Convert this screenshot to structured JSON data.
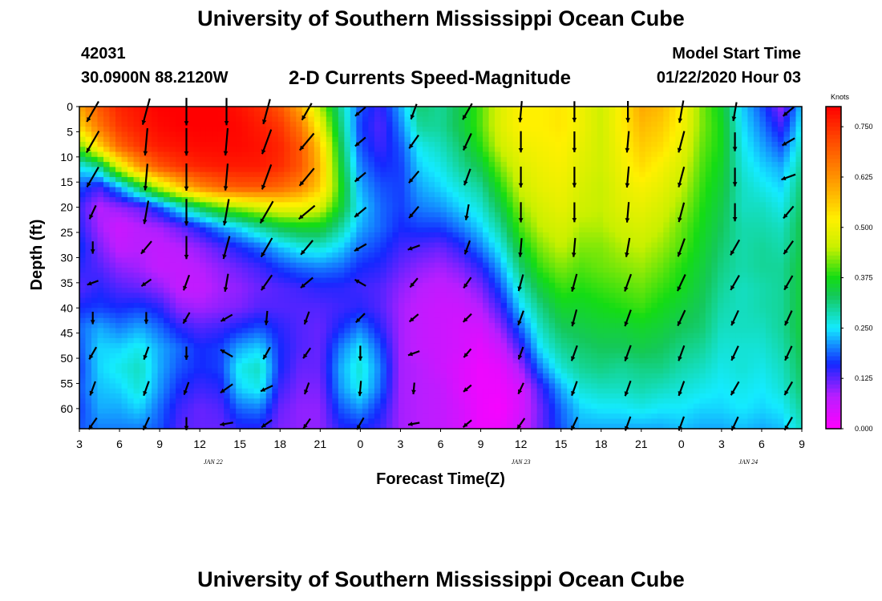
{
  "header": {
    "title": "University of Southern Mississippi Ocean Cube",
    "station_id": "42031",
    "station_coords": "30.0900N 88.2120W",
    "plot_title": "2-D Currents Speed-Magnitude",
    "model_label": "Model Start Time",
    "model_time": "01/22/2020 Hour 03"
  },
  "footer": {
    "title": "University of Southern Mississippi Ocean Cube"
  },
  "chart_data": {
    "type": "heatmap",
    "xlabel": "Forecast Time(Z)",
    "ylabel": "Depth (ft)",
    "x_hours_range": [
      3,
      57
    ],
    "ylim": [
      0,
      64
    ],
    "y_ticks": [
      0,
      5,
      10,
      15,
      20,
      25,
      30,
      35,
      40,
      45,
      50,
      55,
      60
    ],
    "x_tick_labels": [
      "3",
      "6",
      "9",
      "12",
      "15",
      "18",
      "21",
      "0",
      "3",
      "6",
      "9",
      "12",
      "15",
      "18",
      "21",
      "0",
      "3",
      "6",
      "9"
    ],
    "date_labels": [
      {
        "text": "JAN  22",
        "hour": 13
      },
      {
        "text": "JAN  23",
        "hour": 36
      },
      {
        "text": "JAN  24",
        "hour": 53
      }
    ],
    "colorbar": {
      "unit": "Knots",
      "min": 0.0,
      "max": 0.8,
      "ticks": [
        "0.000",
        "0.125",
        "0.250",
        "0.375",
        "0.500",
        "0.625",
        "0.750"
      ]
    },
    "speed_columns": {
      "hours": [
        3,
        4.5,
        6,
        7.5,
        9,
        10.5,
        12,
        13.5,
        15,
        16.5,
        18,
        19.5,
        21,
        22.5,
        24,
        25.5,
        27,
        28.5,
        30,
        31.5,
        33,
        34.5,
        36,
        37.5,
        39,
        40.5,
        42,
        43.5,
        45,
        46.5,
        48,
        49.5,
        51,
        52.5,
        54,
        55.5,
        57
      ],
      "depths": [
        0,
        4,
        8,
        12,
        16,
        20,
        24,
        28,
        32,
        36,
        40,
        44,
        48,
        52,
        56,
        60,
        64
      ],
      "values": [
        [
          0.6,
          0.55,
          0.4,
          0.25,
          0.18,
          0.14,
          0.15,
          0.17,
          0.15,
          0.13,
          0.16,
          0.19,
          0.18,
          0.17,
          0.18,
          0.17,
          0.18
        ],
        [
          0.7,
          0.66,
          0.55,
          0.3,
          0.14,
          0.08,
          0.09,
          0.11,
          0.13,
          0.15,
          0.17,
          0.22,
          0.24,
          0.24,
          0.23,
          0.22,
          0.2
        ],
        [
          0.76,
          0.74,
          0.68,
          0.48,
          0.22,
          0.1,
          0.06,
          0.07,
          0.1,
          0.13,
          0.16,
          0.2,
          0.24,
          0.26,
          0.24,
          0.22,
          0.2
        ],
        [
          0.78,
          0.77,
          0.74,
          0.62,
          0.34,
          0.12,
          0.08,
          0.08,
          0.09,
          0.12,
          0.17,
          0.22,
          0.26,
          0.28,
          0.27,
          0.24,
          0.2
        ],
        [
          0.8,
          0.79,
          0.77,
          0.7,
          0.46,
          0.18,
          0.09,
          0.07,
          0.07,
          0.1,
          0.15,
          0.19,
          0.22,
          0.22,
          0.21,
          0.19,
          0.18
        ],
        [
          0.8,
          0.8,
          0.78,
          0.74,
          0.56,
          0.26,
          0.12,
          0.08,
          0.07,
          0.07,
          0.1,
          0.15,
          0.19,
          0.18,
          0.16,
          0.14,
          0.13
        ],
        [
          0.8,
          0.8,
          0.79,
          0.76,
          0.64,
          0.34,
          0.16,
          0.1,
          0.08,
          0.07,
          0.09,
          0.13,
          0.16,
          0.16,
          0.14,
          0.12,
          0.12
        ],
        [
          0.8,
          0.8,
          0.79,
          0.77,
          0.68,
          0.4,
          0.21,
          0.13,
          0.1,
          0.09,
          0.1,
          0.14,
          0.17,
          0.17,
          0.15,
          0.13,
          0.12
        ],
        [
          0.78,
          0.79,
          0.79,
          0.77,
          0.7,
          0.44,
          0.25,
          0.16,
          0.12,
          0.1,
          0.11,
          0.16,
          0.22,
          0.26,
          0.24,
          0.19,
          0.15
        ],
        [
          0.75,
          0.77,
          0.78,
          0.77,
          0.7,
          0.47,
          0.3,
          0.19,
          0.14,
          0.12,
          0.13,
          0.18,
          0.24,
          0.28,
          0.26,
          0.2,
          0.15
        ],
        [
          0.7,
          0.74,
          0.76,
          0.75,
          0.68,
          0.5,
          0.34,
          0.23,
          0.17,
          0.13,
          0.13,
          0.15,
          0.16,
          0.16,
          0.14,
          0.12,
          0.11
        ],
        [
          0.6,
          0.66,
          0.7,
          0.7,
          0.64,
          0.5,
          0.36,
          0.26,
          0.19,
          0.14,
          0.13,
          0.13,
          0.13,
          0.12,
          0.11,
          0.1,
          0.1
        ],
        [
          0.44,
          0.5,
          0.56,
          0.58,
          0.56,
          0.47,
          0.36,
          0.27,
          0.2,
          0.15,
          0.13,
          0.12,
          0.12,
          0.12,
          0.11,
          0.1,
          0.1
        ],
        [
          0.3,
          0.32,
          0.34,
          0.36,
          0.38,
          0.36,
          0.3,
          0.24,
          0.19,
          0.15,
          0.14,
          0.16,
          0.2,
          0.22,
          0.21,
          0.18,
          0.15
        ],
        [
          0.18,
          0.17,
          0.18,
          0.2,
          0.22,
          0.24,
          0.22,
          0.19,
          0.16,
          0.14,
          0.15,
          0.2,
          0.25,
          0.27,
          0.26,
          0.21,
          0.16
        ],
        [
          0.14,
          0.13,
          0.14,
          0.16,
          0.18,
          0.19,
          0.19,
          0.17,
          0.15,
          0.13,
          0.13,
          0.15,
          0.18,
          0.2,
          0.19,
          0.16,
          0.14
        ],
        [
          0.22,
          0.2,
          0.18,
          0.17,
          0.17,
          0.17,
          0.16,
          0.14,
          0.12,
          0.1,
          0.09,
          0.09,
          0.09,
          0.09,
          0.09,
          0.09,
          0.09
        ],
        [
          0.32,
          0.3,
          0.26,
          0.24,
          0.22,
          0.2,
          0.17,
          0.13,
          0.1,
          0.08,
          0.07,
          0.07,
          0.07,
          0.08,
          0.08,
          0.08,
          0.08
        ],
        [
          0.3,
          0.3,
          0.28,
          0.26,
          0.24,
          0.21,
          0.17,
          0.12,
          0.09,
          0.07,
          0.06,
          0.06,
          0.06,
          0.06,
          0.07,
          0.07,
          0.07
        ],
        [
          0.34,
          0.34,
          0.32,
          0.3,
          0.27,
          0.24,
          0.2,
          0.15,
          0.11,
          0.08,
          0.06,
          0.05,
          0.05,
          0.04,
          0.04,
          0.05,
          0.05
        ],
        [
          0.4,
          0.4,
          0.38,
          0.34,
          0.3,
          0.27,
          0.24,
          0.2,
          0.15,
          0.11,
          0.08,
          0.05,
          0.03,
          0.02,
          0.02,
          0.02,
          0.02
        ],
        [
          0.48,
          0.48,
          0.46,
          0.42,
          0.38,
          0.34,
          0.3,
          0.26,
          0.22,
          0.18,
          0.14,
          0.1,
          0.06,
          0.03,
          0.02,
          0.01,
          0.02
        ],
        [
          0.52,
          0.52,
          0.5,
          0.48,
          0.46,
          0.43,
          0.4,
          0.36,
          0.32,
          0.28,
          0.24,
          0.19,
          0.14,
          0.09,
          0.05,
          0.05,
          0.06
        ],
        [
          0.52,
          0.52,
          0.51,
          0.5,
          0.49,
          0.47,
          0.45,
          0.42,
          0.39,
          0.35,
          0.31,
          0.28,
          0.25,
          0.2,
          0.14,
          0.12,
          0.12
        ],
        [
          0.53,
          0.53,
          0.52,
          0.51,
          0.5,
          0.49,
          0.47,
          0.45,
          0.42,
          0.39,
          0.36,
          0.33,
          0.3,
          0.27,
          0.22,
          0.19,
          0.18
        ],
        [
          0.5,
          0.5,
          0.49,
          0.48,
          0.47,
          0.46,
          0.44,
          0.42,
          0.4,
          0.38,
          0.36,
          0.34,
          0.32,
          0.3,
          0.27,
          0.24,
          0.22
        ],
        [
          0.46,
          0.46,
          0.46,
          0.46,
          0.45,
          0.45,
          0.44,
          0.42,
          0.41,
          0.39,
          0.37,
          0.35,
          0.33,
          0.31,
          0.28,
          0.25,
          0.22
        ],
        [
          0.52,
          0.52,
          0.51,
          0.5,
          0.49,
          0.48,
          0.46,
          0.44,
          0.42,
          0.4,
          0.38,
          0.35,
          0.33,
          0.3,
          0.28,
          0.25,
          0.22
        ],
        [
          0.6,
          0.58,
          0.56,
          0.54,
          0.51,
          0.49,
          0.47,
          0.45,
          0.43,
          0.41,
          0.39,
          0.36,
          0.34,
          0.31,
          0.29,
          0.26,
          0.22
        ],
        [
          0.58,
          0.56,
          0.54,
          0.51,
          0.49,
          0.47,
          0.45,
          0.43,
          0.41,
          0.39,
          0.37,
          0.35,
          0.33,
          0.31,
          0.28,
          0.25,
          0.22
        ],
        [
          0.52,
          0.51,
          0.49,
          0.47,
          0.45,
          0.43,
          0.41,
          0.4,
          0.38,
          0.37,
          0.35,
          0.33,
          0.31,
          0.29,
          0.27,
          0.25,
          0.23
        ],
        [
          0.42,
          0.42,
          0.41,
          0.4,
          0.39,
          0.38,
          0.37,
          0.36,
          0.35,
          0.34,
          0.33,
          0.32,
          0.3,
          0.28,
          0.26,
          0.24,
          0.22
        ],
        [
          0.36,
          0.37,
          0.37,
          0.36,
          0.35,
          0.34,
          0.33,
          0.32,
          0.31,
          0.3,
          0.29,
          0.28,
          0.27,
          0.26,
          0.25,
          0.24,
          0.22
        ],
        [
          0.24,
          0.25,
          0.26,
          0.27,
          0.28,
          0.28,
          0.29,
          0.29,
          0.29,
          0.28,
          0.28,
          0.28,
          0.27,
          0.27,
          0.26,
          0.25,
          0.23
        ],
        [
          0.18,
          0.2,
          0.22,
          0.24,
          0.26,
          0.28,
          0.29,
          0.3,
          0.3,
          0.29,
          0.29,
          0.28,
          0.27,
          0.26,
          0.25,
          0.24,
          0.22
        ],
        [
          0.1,
          0.14,
          0.18,
          0.22,
          0.24,
          0.26,
          0.28,
          0.29,
          0.3,
          0.3,
          0.3,
          0.3,
          0.29,
          0.28,
          0.27,
          0.25,
          0.23
        ],
        [
          0.24,
          0.26,
          0.28,
          0.3,
          0.32,
          0.33,
          0.34,
          0.34,
          0.35,
          0.35,
          0.35,
          0.35,
          0.34,
          0.33,
          0.32,
          0.3,
          0.28
        ]
      ]
    },
    "current_vectors": {
      "hours": [
        4,
        8,
        11,
        14,
        17,
        20,
        24,
        28,
        32,
        36,
        40,
        44,
        48,
        52,
        56
      ],
      "depths": [
        1,
        7,
        14,
        21,
        28,
        35,
        42,
        49,
        56,
        63
      ],
      "directions_deg": [
        [
          210,
          195,
          180,
          180,
          195,
          210,
          230,
          200,
          210,
          185,
          180,
          180,
          190,
          190,
          230
        ],
        [
          210,
          185,
          180,
          185,
          200,
          220,
          230,
          215,
          205,
          180,
          180,
          185,
          195,
          180,
          240
        ],
        [
          210,
          185,
          180,
          185,
          200,
          220,
          230,
          220,
          200,
          180,
          180,
          185,
          195,
          180,
          250
        ],
        [
          205,
          190,
          180,
          190,
          210,
          230,
          230,
          220,
          190,
          180,
          180,
          185,
          195,
          180,
          220
        ],
        [
          180,
          220,
          180,
          195,
          210,
          220,
          240,
          250,
          200,
          185,
          185,
          190,
          200,
          210,
          215
        ],
        [
          250,
          235,
          200,
          190,
          215,
          230,
          300,
          220,
          215,
          195,
          195,
          200,
          205,
          210,
          210
        ],
        [
          180,
          180,
          210,
          240,
          185,
          200,
          225,
          230,
          225,
          200,
          195,
          200,
          205,
          205,
          205
        ],
        [
          210,
          200,
          180,
          300,
          210,
          215,
          180,
          250,
          220,
          200,
          200,
          200,
          200,
          205,
          205
        ],
        [
          200,
          200,
          200,
          235,
          245,
          200,
          185,
          185,
          230,
          205,
          200,
          200,
          200,
          210,
          210
        ],
        [
          215,
          205,
          180,
          260,
          235,
          215,
          210,
          260,
          230,
          215,
          205,
          200,
          200,
          205,
          210
        ]
      ],
      "speeds_knots": [
        [
          0.62,
          0.78,
          0.8,
          0.79,
          0.72,
          0.44,
          0.18,
          0.3,
          0.4,
          0.52,
          0.5,
          0.52,
          0.58,
          0.42,
          0.2
        ],
        [
          0.68,
          0.79,
          0.8,
          0.79,
          0.74,
          0.55,
          0.18,
          0.3,
          0.4,
          0.52,
          0.5,
          0.53,
          0.56,
          0.41,
          0.22
        ],
        [
          0.6,
          0.76,
          0.79,
          0.77,
          0.75,
          0.58,
          0.2,
          0.26,
          0.35,
          0.5,
          0.49,
          0.51,
          0.51,
          0.4,
          0.24
        ],
        [
          0.24,
          0.62,
          0.76,
          0.76,
          0.7,
          0.5,
          0.24,
          0.24,
          0.28,
          0.47,
          0.46,
          0.48,
          0.47,
          0.38,
          0.27
        ],
        [
          0.12,
          0.3,
          0.6,
          0.62,
          0.55,
          0.4,
          0.19,
          0.14,
          0.22,
          0.41,
          0.42,
          0.43,
          0.43,
          0.36,
          0.29
        ],
        [
          0.1,
          0.1,
          0.3,
          0.38,
          0.4,
          0.28,
          0.14,
          0.1,
          0.15,
          0.34,
          0.38,
          0.39,
          0.39,
          0.33,
          0.3
        ],
        [
          0.13,
          0.1,
          0.14,
          0.16,
          0.2,
          0.17,
          0.14,
          0.09,
          0.09,
          0.26,
          0.34,
          0.35,
          0.34,
          0.31,
          0.3
        ],
        [
          0.2,
          0.18,
          0.16,
          0.2,
          0.19,
          0.14,
          0.24,
          0.11,
          0.07,
          0.16,
          0.3,
          0.32,
          0.3,
          0.29,
          0.28
        ],
        [
          0.24,
          0.25,
          0.17,
          0.24,
          0.16,
          0.12,
          0.25,
          0.09,
          0.03,
          0.12,
          0.26,
          0.29,
          0.27,
          0.27,
          0.26
        ],
        [
          0.2,
          0.2,
          0.15,
          0.16,
          0.14,
          0.11,
          0.18,
          0.09,
          0.06,
          0.16,
          0.22,
          0.24,
          0.24,
          0.25,
          0.24
        ]
      ]
    }
  }
}
